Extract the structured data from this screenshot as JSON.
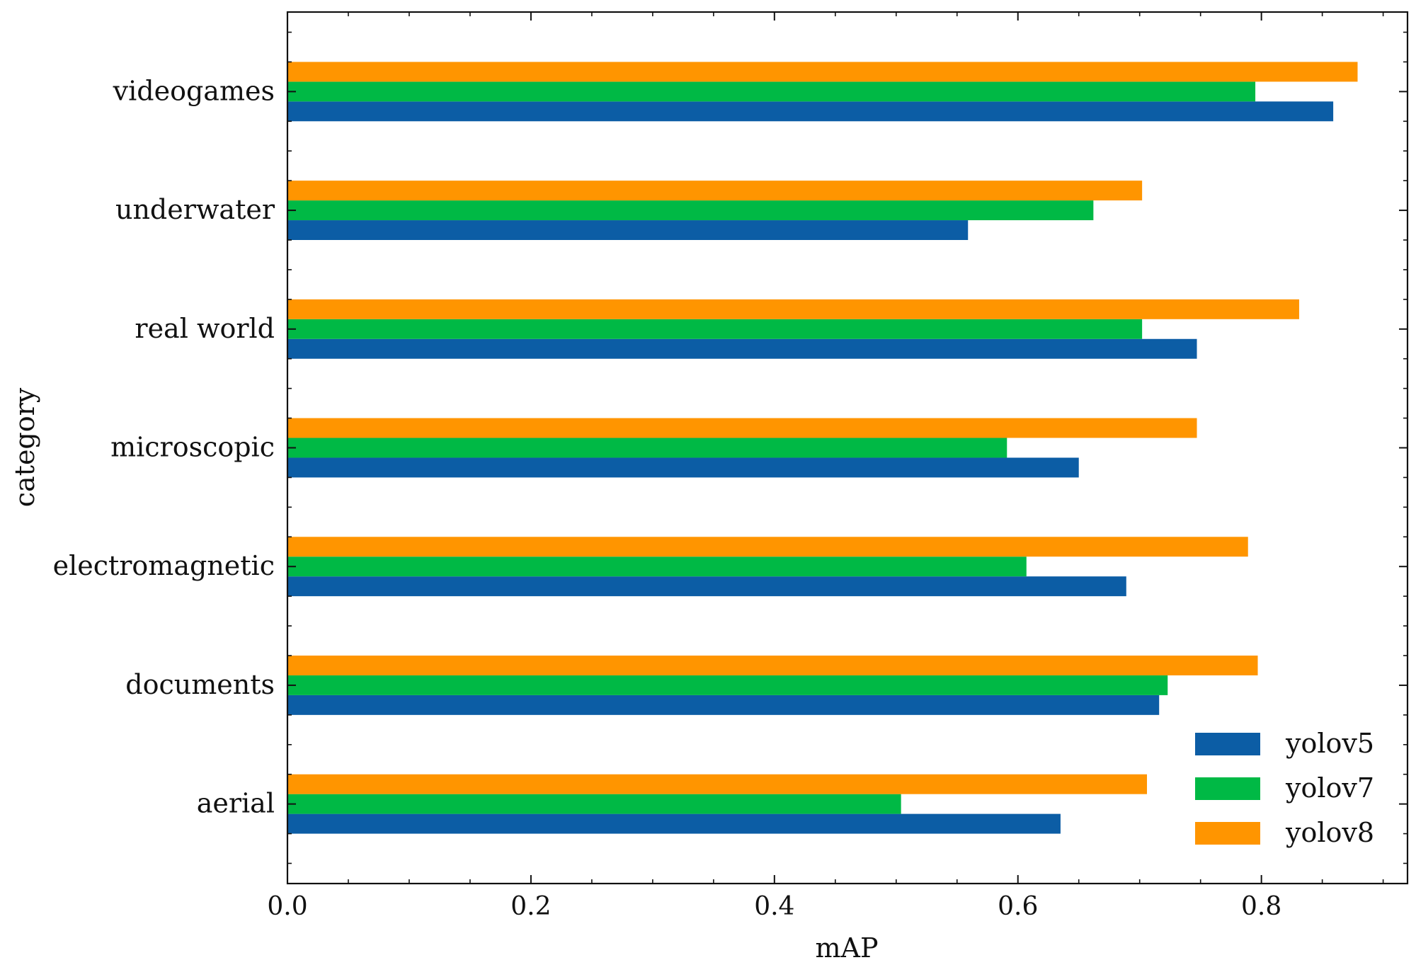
{
  "chart_data": {
    "type": "bar",
    "orientation": "horizontal",
    "title": "",
    "xlabel": "mAP",
    "ylabel": "category",
    "xlim": [
      0.0,
      0.92
    ],
    "x_ticks": [
      "0.0",
      "0.2",
      "0.4",
      "0.6",
      "0.8"
    ],
    "x_tick_values": [
      0.0,
      0.2,
      0.4,
      0.6,
      0.8
    ],
    "grid": false,
    "legend_position": "lower-right",
    "categories": [
      "aerial",
      "documents",
      "electromagnetic",
      "microscopic",
      "real world",
      "underwater",
      "videogames"
    ],
    "series": [
      {
        "name": "yolov5",
        "color": "#0c5da5",
        "values": [
          0.635,
          0.716,
          0.689,
          0.65,
          0.747,
          0.559,
          0.859
        ]
      },
      {
        "name": "yolov7",
        "color": "#00b945",
        "values": [
          0.504,
          0.723,
          0.607,
          0.591,
          0.702,
          0.662,
          0.795
        ]
      },
      {
        "name": "yolov8",
        "color": "#ff9500",
        "values": [
          0.706,
          0.797,
          0.789,
          0.747,
          0.831,
          0.702,
          0.879
        ]
      }
    ]
  }
}
